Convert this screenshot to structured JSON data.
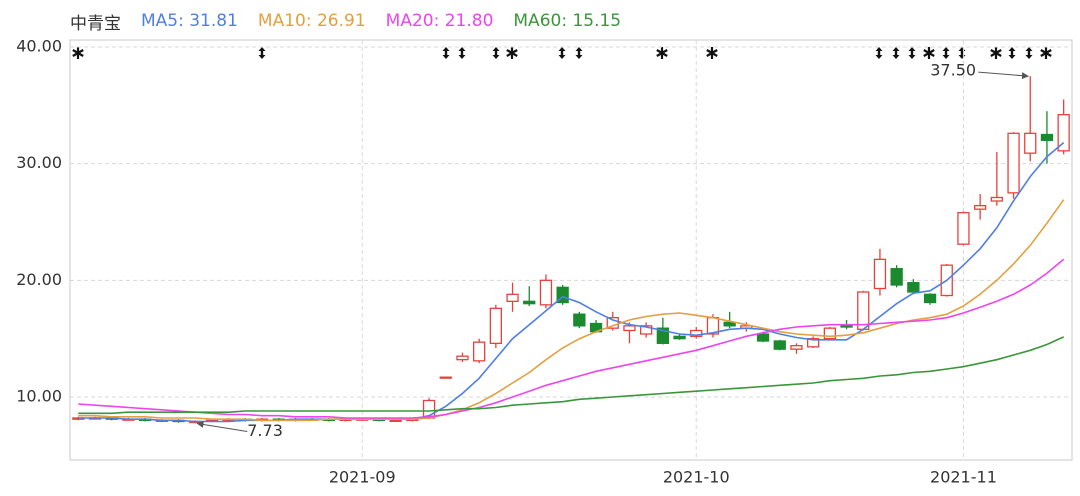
{
  "chart_data": {
    "type": "candlestick",
    "title": "中青宝",
    "categories": [
      null,
      null,
      null,
      null,
      null,
      null,
      null,
      null,
      null,
      null,
      null,
      null,
      null,
      null,
      null,
      null,
      null,
      "2021-09",
      null,
      null,
      null,
      null,
      null,
      null,
      null,
      null,
      null,
      null,
      null,
      null,
      null,
      null,
      null,
      null,
      null,
      null,
      null,
      "2021-10",
      null,
      null,
      null,
      null,
      null,
      null,
      null,
      null,
      null,
      null,
      null,
      null,
      null,
      null,
      null,
      "2021-11",
      null,
      null,
      null,
      null,
      null,
      null
    ],
    "open": [
      8.1,
      8.2,
      8.2,
      8.1,
      8.1,
      8.0,
      8.0,
      7.9,
      8.0,
      8.0,
      8.1,
      8.0,
      8.1,
      8.0,
      8.1,
      8.1,
      8.0,
      8.1,
      8.1,
      8.0,
      8.0,
      8.2,
      11.7,
      13.2,
      13.1,
      14.6,
      18.2,
      18.2,
      17.9,
      19.4,
      17.1,
      16.3,
      15.9,
      15.7,
      15.4,
      15.9,
      15.2,
      15.2,
      15.4,
      16.4,
      15.9,
      15.4,
      14.8,
      14.1,
      14.3,
      15.0,
      16.2,
      15.8,
      19.3,
      21.0,
      19.8,
      18.8,
      18.7,
      23.1,
      26.1,
      26.8,
      27.5,
      30.9,
      32.5,
      31.1
    ],
    "high": [
      8.3,
      8.3,
      8.3,
      8.2,
      8.2,
      8.1,
      8.1,
      8.0,
      8.1,
      8.2,
      8.2,
      8.2,
      8.2,
      8.2,
      8.2,
      8.2,
      8.2,
      8.2,
      8.2,
      8.1,
      8.2,
      9.9,
      11.7,
      13.8,
      15.0,
      17.9,
      19.8,
      19.5,
      20.5,
      19.6,
      17.3,
      16.6,
      17.3,
      16.4,
      16.4,
      16.8,
      15.4,
      16.0,
      17.1,
      17.3,
      16.4,
      15.6,
      14.9,
      14.6,
      15.2,
      16.0,
      16.6,
      19.1,
      22.7,
      21.3,
      20.1,
      18.9,
      21.4,
      25.9,
      27.4,
      31.0,
      32.7,
      37.5,
      34.5,
      35.5
    ],
    "low": [
      8.0,
      8.1,
      8.0,
      8.0,
      7.9,
      7.9,
      7.8,
      7.73,
      7.9,
      7.9,
      7.9,
      7.9,
      7.9,
      7.9,
      8.0,
      7.9,
      7.9,
      8.0,
      7.9,
      7.9,
      7.9,
      8.1,
      11.7,
      13.0,
      12.9,
      14.2,
      17.3,
      17.8,
      17.6,
      17.9,
      15.9,
      15.5,
      15.7,
      14.6,
      15.1,
      14.5,
      14.9,
      15.0,
      15.1,
      15.9,
      15.6,
      14.7,
      14.0,
      13.7,
      14.2,
      14.9,
      15.8,
      15.7,
      18.7,
      19.4,
      18.8,
      17.9,
      18.6,
      23.0,
      25.2,
      26.4,
      27.0,
      30.2,
      30.0,
      30.8
    ],
    "close": [
      8.2,
      8.2,
      8.1,
      8.1,
      8.0,
      8.0,
      7.9,
      7.9,
      8.0,
      8.1,
      8.0,
      8.1,
      8.0,
      8.1,
      8.1,
      8.0,
      8.1,
      8.1,
      8.0,
      8.0,
      8.1,
      9.7,
      11.7,
      13.5,
      14.7,
      17.6,
      18.8,
      18.0,
      20.0,
      18.1,
      16.1,
      15.6,
      16.8,
      16.1,
      16.1,
      14.6,
      15.0,
      15.7,
      16.8,
      16.1,
      16.1,
      14.8,
      14.1,
      14.4,
      15.0,
      15.9,
      16.0,
      19.0,
      21.8,
      19.6,
      19.0,
      18.1,
      21.3,
      25.8,
      26.4,
      27.1,
      32.6,
      32.6,
      32.0,
      34.2
    ],
    "up_color": "#e8413c",
    "down_color": "#1b8a2e",
    "series": [
      {
        "name": "MA5: 31.81",
        "color": "#4f7fe6",
        "values": [
          8.2,
          8.2,
          8.2,
          8.1,
          8.1,
          8.0,
          8.0,
          7.9,
          7.9,
          7.9,
          8.0,
          8.0,
          8.0,
          8.1,
          8.1,
          8.1,
          8.1,
          8.1,
          8.1,
          8.1,
          8.1,
          8.4,
          9.2,
          10.3,
          11.6,
          13.3,
          15.0,
          16.2,
          17.4,
          18.6,
          18.1,
          17.3,
          16.6,
          16.2,
          16.0,
          15.7,
          15.4,
          15.3,
          15.5,
          15.8,
          15.9,
          15.8,
          15.4,
          15.1,
          14.9,
          14.9,
          14.9,
          15.8,
          16.9,
          18.0,
          18.9,
          19.1,
          20.0,
          21.3,
          22.7,
          24.5,
          26.8,
          28.9,
          30.6,
          31.81
        ]
      },
      {
        "name": "MA10: 26.91",
        "color": "#e3a040",
        "values": [
          8.4,
          8.4,
          8.3,
          8.3,
          8.3,
          8.2,
          8.2,
          8.2,
          8.1,
          8.1,
          8.1,
          8.0,
          8.0,
          8.0,
          8.0,
          8.1,
          8.1,
          8.1,
          8.1,
          8.1,
          8.1,
          8.2,
          8.5,
          8.9,
          9.5,
          10.3,
          11.2,
          12.1,
          13.2,
          14.2,
          15.0,
          15.6,
          16.1,
          16.6,
          16.9,
          17.1,
          17.2,
          17.0,
          16.8,
          16.5,
          16.2,
          15.9,
          15.6,
          15.4,
          15.3,
          15.2,
          15.3,
          15.5,
          15.9,
          16.3,
          16.6,
          16.8,
          17.1,
          17.8,
          18.8,
          20.0,
          21.4,
          23.0,
          24.9,
          26.91
        ]
      },
      {
        "name": "MA20: 21.80",
        "color": "#ee44ee",
        "values": [
          9.4,
          9.3,
          9.2,
          9.1,
          9.0,
          8.9,
          8.8,
          8.7,
          8.6,
          8.5,
          8.5,
          8.4,
          8.4,
          8.3,
          8.3,
          8.3,
          8.2,
          8.2,
          8.2,
          8.2,
          8.2,
          8.3,
          8.5,
          8.8,
          9.1,
          9.5,
          10.0,
          10.5,
          11.0,
          11.4,
          11.8,
          12.2,
          12.5,
          12.8,
          13.1,
          13.4,
          13.7,
          14.0,
          14.4,
          14.8,
          15.2,
          15.5,
          15.8,
          16.0,
          16.1,
          16.2,
          16.2,
          16.2,
          16.3,
          16.4,
          16.5,
          16.6,
          16.8,
          17.2,
          17.7,
          18.2,
          18.8,
          19.6,
          20.6,
          21.8
        ]
      },
      {
        "name": "MA60: 15.15",
        "color": "#3a963a",
        "values": [
          8.6,
          8.6,
          8.6,
          8.7,
          8.7,
          8.7,
          8.7,
          8.7,
          8.7,
          8.7,
          8.8,
          8.8,
          8.8,
          8.8,
          8.8,
          8.8,
          8.8,
          8.8,
          8.8,
          8.8,
          8.8,
          8.8,
          8.9,
          9.0,
          9.0,
          9.1,
          9.3,
          9.4,
          9.5,
          9.6,
          9.8,
          9.9,
          10.0,
          10.1,
          10.2,
          10.3,
          10.4,
          10.5,
          10.6,
          10.7,
          10.8,
          10.9,
          11.0,
          11.1,
          11.2,
          11.4,
          11.5,
          11.6,
          11.8,
          11.9,
          12.1,
          12.2,
          12.4,
          12.6,
          12.9,
          13.2,
          13.6,
          14.0,
          14.5,
          15.15
        ]
      }
    ],
    "annotations": [
      {
        "text": "37.50",
        "value": 37.5
      },
      {
        "text": "7.73",
        "value": 7.73
      }
    ],
    "ylim": [
      4.6,
      40.6
    ],
    "yticks": [
      {
        "value": 10,
        "label": "10.00"
      },
      {
        "value": 20,
        "label": "20.00"
      },
      {
        "value": 30,
        "label": "30.00"
      },
      {
        "value": 40,
        "label": "40.00"
      }
    ],
    "grid": true
  }
}
